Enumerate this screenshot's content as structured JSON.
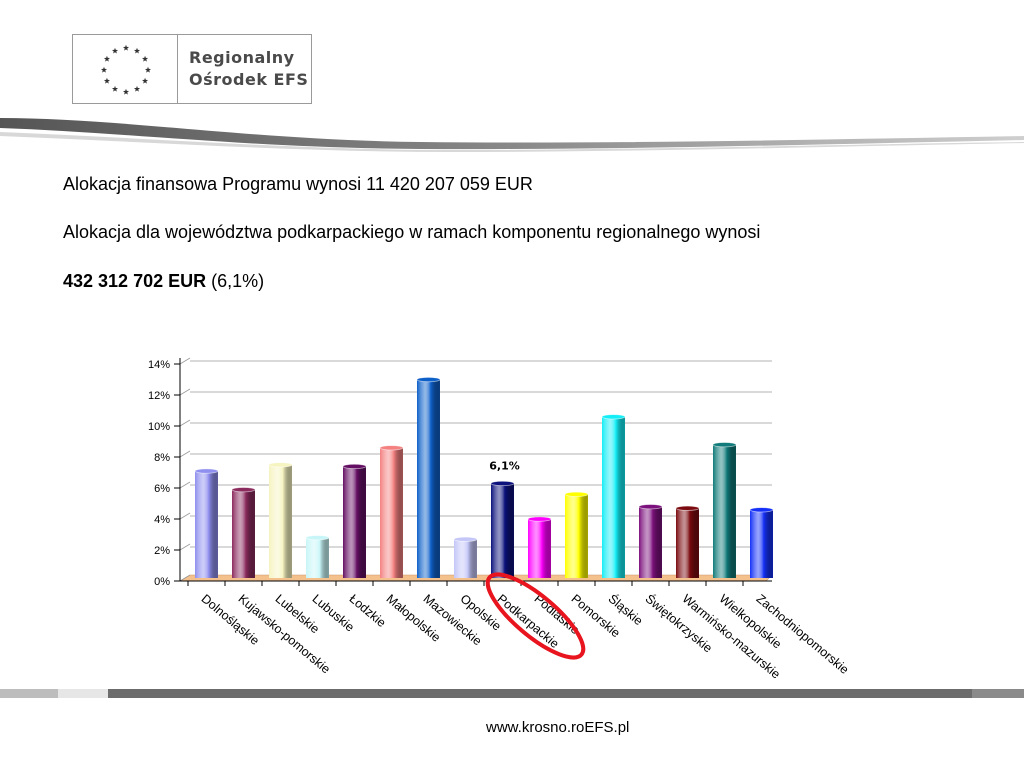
{
  "logo": {
    "line1": "Regionalny",
    "line2": "Ośrodek EFS"
  },
  "text": {
    "line1": "Alokacja finansowa Programu wynosi 11 420 207 059 EUR",
    "line2": "Alokacja dla województwa podkarpackiego w ramach  komponentu regionalnego wynosi",
    "line3_bold": "432 312 702 EUR",
    "line3_rest": " (6,1%)"
  },
  "chart_data": {
    "type": "bar",
    "title": "",
    "xlabel": "",
    "ylabel": "",
    "ylim": [
      0,
      14
    ],
    "yticks": [
      0,
      2,
      4,
      6,
      8,
      10,
      12,
      14
    ],
    "ytick_labels": [
      "0%",
      "2%",
      "4%",
      "6%",
      "8%",
      "10%",
      "12%",
      "14%"
    ],
    "grid": true,
    "categories": [
      "Dolnośląskie",
      "Kujawsko-pomorskie",
      "Lubelskie",
      "Lubuskie",
      "Łodzkie",
      "Małopolskie",
      "Mazowieckie",
      "Opolskie",
      "Podkarpackie",
      "Podlaskie",
      "Pomorskie",
      "Śląskie",
      "Świętokrzyskie",
      "Warmińsko-mazurskie",
      "Wielkopolskie",
      "Zachodniopomorskie"
    ],
    "values": [
      6.9,
      5.7,
      7.3,
      2.6,
      7.2,
      8.4,
      12.8,
      2.5,
      6.1,
      3.8,
      5.4,
      10.4,
      4.6,
      4.5,
      8.6,
      4.4
    ],
    "colors": [
      "#8f8fef",
      "#8b2b5e",
      "#f6f4c0",
      "#c8f6f8",
      "#640f64",
      "#f48080",
      "#0e60c9",
      "#c4c6f8",
      "#0c117c",
      "#ff00ff",
      "#ffff00",
      "#14eef6",
      "#7c117d",
      "#7b0b10",
      "#117a7a",
      "#1430f8"
    ],
    "annotation": {
      "category": "Podkarpackie",
      "label": "6,1%",
      "highlight_color": "#e8141e"
    }
  },
  "footer": {
    "url": "www.krosno.roEFS.pl"
  }
}
